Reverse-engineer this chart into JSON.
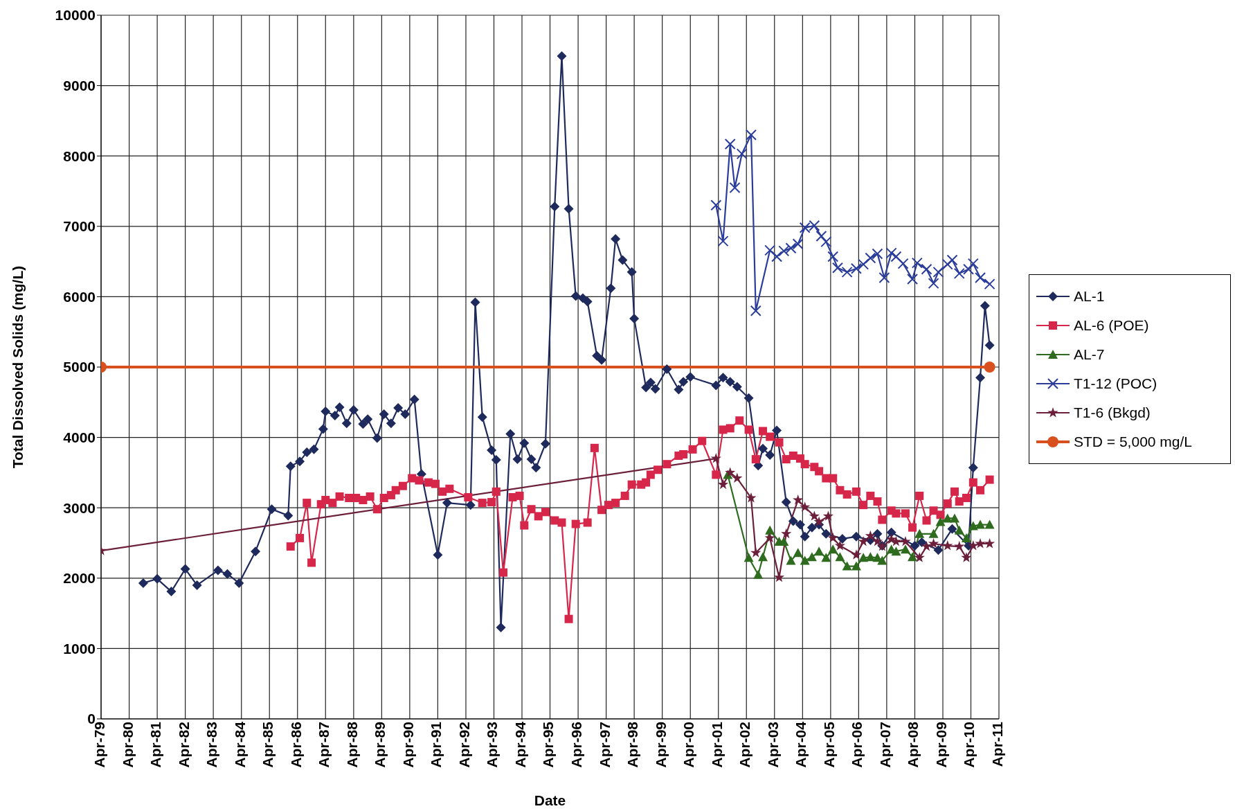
{
  "chart_data": {
    "type": "line",
    "xlabel": "Date",
    "ylabel": "Total Dissolved Solids (mg/L)",
    "xlim": [
      "1979-04",
      "2011-04"
    ],
    "xticks": [
      {
        "value": "1979-04",
        "label": "Apr-79"
      },
      {
        "value": "1980-04",
        "label": "Apr-80"
      },
      {
        "value": "1981-04",
        "label": "Apr-81"
      },
      {
        "value": "1982-04",
        "label": "Apr-82"
      },
      {
        "value": "1983-04",
        "label": "Apr-83"
      },
      {
        "value": "1984-04",
        "label": "Apr-84"
      },
      {
        "value": "1985-04",
        "label": "Apr-85"
      },
      {
        "value": "1986-04",
        "label": "Apr-86"
      },
      {
        "value": "1987-04",
        "label": "Apr-87"
      },
      {
        "value": "1988-04",
        "label": "Apr-88"
      },
      {
        "value": "1989-04",
        "label": "Apr-89"
      },
      {
        "value": "1990-04",
        "label": "Apr-90"
      },
      {
        "value": "1991-04",
        "label": "Apr-91"
      },
      {
        "value": "1992-04",
        "label": "Apr-92"
      },
      {
        "value": "1993-04",
        "label": "Apr-93"
      },
      {
        "value": "1994-04",
        "label": "Apr-94"
      },
      {
        "value": "1995-04",
        "label": "Apr-95"
      },
      {
        "value": "1996-04",
        "label": "Apr-96"
      },
      {
        "value": "1997-04",
        "label": "Apr-97"
      },
      {
        "value": "1998-04",
        "label": "Apr-98"
      },
      {
        "value": "1999-04",
        "label": "Apr-99"
      },
      {
        "value": "2000-04",
        "label": "Apr-00"
      },
      {
        "value": "2001-04",
        "label": "Apr-01"
      },
      {
        "value": "2002-04",
        "label": "Apr-02"
      },
      {
        "value": "2003-04",
        "label": "Apr-03"
      },
      {
        "value": "2004-04",
        "label": "Apr-04"
      },
      {
        "value": "2005-04",
        "label": "Apr-05"
      },
      {
        "value": "2006-04",
        "label": "Apr-06"
      },
      {
        "value": "2007-04",
        "label": "Apr-07"
      },
      {
        "value": "2008-04",
        "label": "Apr-08"
      },
      {
        "value": "2009-04",
        "label": "Apr-09"
      },
      {
        "value": "2010-04",
        "label": "Apr-10"
      },
      {
        "value": "2011-04",
        "label": "Apr-11"
      }
    ],
    "ylim": [
      0,
      10000
    ],
    "yticks": [
      0,
      1000,
      2000,
      3000,
      4000,
      5000,
      6000,
      7000,
      8000,
      9000,
      10000
    ],
    "grid": true,
    "legend": "right",
    "series": [
      {
        "name": "AL-1",
        "color": "#1f2a5c",
        "marker": "diamond",
        "x": [
          "1980-10",
          "1981-04",
          "1981-10",
          "1982-04",
          "1982-09",
          "1983-06",
          "1983-10",
          "1984-03",
          "1984-10",
          "1985-05",
          "1985-12",
          "1986-01",
          "1986-05",
          "1986-08",
          "1986-11",
          "1987-03",
          "1987-04",
          "1987-08",
          "1987-10",
          "1988-01",
          "1988-04",
          "1988-08",
          "1988-10",
          "1989-02",
          "1989-05",
          "1989-08",
          "1989-11",
          "1990-02",
          "1990-06",
          "1990-09",
          "1991-04",
          "1991-08",
          "1992-06",
          "1992-08",
          "1992-11",
          "1993-03",
          "1993-05",
          "1993-07",
          "1993-11",
          "1994-02",
          "1994-05",
          "1994-08",
          "1994-10",
          "1995-02",
          "1995-06",
          "1995-09",
          "1995-12",
          "1996-03",
          "1996-06",
          "1996-08",
          "1996-12",
          "1997-02",
          "1997-06",
          "1997-08",
          "1997-11",
          "1998-03",
          "1998-04",
          "1998-09",
          "1998-11",
          "1999-01",
          "1999-06",
          "1999-11",
          "2000-01",
          "2000-04",
          "2001-03",
          "2001-06",
          "2001-09",
          "2001-12",
          "2002-05",
          "2002-09",
          "2002-11",
          "2003-02",
          "2003-05",
          "2003-09",
          "2003-12",
          "2004-03",
          "2004-05",
          "2004-08",
          "2004-11",
          "2005-02",
          "2005-09",
          "2006-03",
          "2006-09",
          "2006-12",
          "2007-02",
          "2007-06",
          "2008-04",
          "2008-07",
          "2009-02",
          "2009-08",
          "2010-03",
          "2010-05",
          "2010-08",
          "2010-10",
          "2010-12"
        ],
        "values": [
          1930,
          1990,
          1810,
          2130,
          1900,
          2110,
          2060,
          1930,
          2380,
          2980,
          2890,
          3590,
          3660,
          3790,
          3830,
          4120,
          4370,
          4310,
          4430,
          4200,
          4390,
          4190,
          4260,
          3990,
          4330,
          4200,
          4420,
          4330,
          4540,
          3480,
          2330,
          3070,
          3040,
          5920,
          4290,
          3820,
          3680,
          1300,
          4050,
          3690,
          3920,
          3690,
          3570,
          3910,
          7280,
          9420,
          7250,
          6010,
          5980,
          5930,
          5160,
          5100,
          6120,
          6820,
          6520,
          6350,
          5690,
          4710,
          4780,
          4690,
          4970,
          4680,
          4790,
          4860,
          4740,
          4850,
          4790,
          4720,
          4560,
          3600,
          3840,
          3750,
          4100,
          3080,
          2810,
          2760,
          2590,
          2720,
          2760,
          2630,
          2560,
          2590,
          2540,
          2630,
          2460,
          2650,
          2460,
          2510,
          2400,
          2700,
          2460,
          3570,
          4850,
          5870,
          5310
        ]
      },
      {
        "name": "AL-6 (POE)",
        "color": "#d6264a",
        "marker": "square",
        "x": [
          "1986-01",
          "1986-05",
          "1986-08",
          "1986-10",
          "1987-02",
          "1987-04",
          "1987-07",
          "1987-10",
          "1988-02",
          "1988-05",
          "1988-08",
          "1988-11",
          "1989-02",
          "1989-05",
          "1989-08",
          "1989-10",
          "1990-01",
          "1990-05",
          "1990-08",
          "1990-12",
          "1991-03",
          "1991-06",
          "1991-09",
          "1992-05",
          "1992-11",
          "1993-03",
          "1993-05",
          "1993-08",
          "1993-12",
          "1994-03",
          "1994-05",
          "1994-08",
          "1994-11",
          "1995-02",
          "1995-06",
          "1995-09",
          "1995-12",
          "1996-03",
          "1996-08",
          "1996-11",
          "1997-02",
          "1997-05",
          "1997-08",
          "1997-12",
          "1998-03",
          "1998-07",
          "1998-09",
          "1998-11",
          "1999-02",
          "1999-06",
          "1999-11",
          "2000-01",
          "2000-05",
          "2000-09",
          "2001-03",
          "2001-06",
          "2001-09",
          "2002-01",
          "2002-05",
          "2002-08",
          "2002-11",
          "2003-02",
          "2003-06",
          "2003-09",
          "2003-12",
          "2004-03",
          "2004-05",
          "2004-09",
          "2004-11",
          "2005-02",
          "2005-05",
          "2005-08",
          "2005-11",
          "2006-03",
          "2006-06",
          "2006-09",
          "2006-12",
          "2007-02",
          "2007-06",
          "2007-08",
          "2007-12",
          "2008-03",
          "2008-06",
          "2008-09",
          "2008-12",
          "2009-03",
          "2009-06",
          "2009-09",
          "2009-11",
          "2010-02",
          "2010-05",
          "2010-08",
          "2010-12"
        ],
        "values": [
          2450,
          2570,
          3070,
          2220,
          3050,
          3110,
          3070,
          3160,
          3140,
          3140,
          3110,
          3160,
          2980,
          3140,
          3180,
          3250,
          3310,
          3420,
          3390,
          3360,
          3340,
          3230,
          3270,
          3150,
          3070,
          3080,
          3230,
          2080,
          3150,
          3170,
          2750,
          2980,
          2880,
          2940,
          2820,
          2790,
          1420,
          2770,
          2790,
          3850,
          2970,
          3040,
          3070,
          3170,
          3330,
          3330,
          3360,
          3470,
          3540,
          3620,
          3740,
          3760,
          3830,
          3950,
          3470,
          4110,
          4130,
          4240,
          4110,
          3690,
          4090,
          4010,
          3930,
          3690,
          3740,
          3700,
          3620,
          3580,
          3520,
          3420,
          3420,
          3250,
          3190,
          3230,
          3040,
          3170,
          3090,
          2830,
          2960,
          2920,
          2920,
          2720,
          3170,
          2820,
          2960,
          2900,
          3060,
          3230,
          3090,
          3140,
          3360,
          3250,
          3400
        ]
      },
      {
        "name": "AL-7",
        "color": "#2e6b1e",
        "marker": "triangle",
        "x": [
          "2001-08",
          "2002-05",
          "2002-09",
          "2002-11",
          "2003-02",
          "2003-06",
          "2003-08",
          "2003-11",
          "2004-02",
          "2004-05",
          "2004-08",
          "2004-11",
          "2005-02",
          "2005-05",
          "2005-08",
          "2005-11",
          "2006-03",
          "2006-06",
          "2006-09",
          "2006-12",
          "2007-02",
          "2007-06",
          "2007-08",
          "2007-12",
          "2008-03",
          "2008-06",
          "2008-09",
          "2008-12",
          "2009-03",
          "2009-06",
          "2009-09",
          "2009-11",
          "2010-02",
          "2010-05",
          "2010-08",
          "2010-12"
        ],
        "values": [
          3470,
          2290,
          2050,
          2300,
          2680,
          2520,
          2520,
          2250,
          2360,
          2250,
          2300,
          2380,
          2290,
          2410,
          2300,
          2170,
          2170,
          2290,
          2300,
          2290,
          2250,
          2410,
          2380,
          2410,
          2300,
          2630,
          null,
          2630,
          2800,
          2850,
          2850,
          2680,
          2570,
          2740,
          2760,
          2760
        ]
      },
      {
        "name": "T1-12 (POC)",
        "color": "#2b3d9a",
        "marker": "cross",
        "x": [
          "2001-03",
          "2001-06",
          "2001-09",
          "2001-11",
          "2002-02",
          "2002-06",
          "2002-08",
          "2003-02",
          "2003-05",
          "2003-08",
          "2003-11",
          "2004-02",
          "2004-05",
          "2004-09",
          "2004-12",
          "2005-02",
          "2005-05",
          "2005-07",
          "2005-11",
          "2006-03",
          "2006-06",
          "2006-09",
          "2006-12",
          "2007-03",
          "2007-06",
          "2007-08",
          "2007-11",
          "2008-03",
          "2008-05",
          "2008-09",
          "2008-12",
          "2009-02",
          "2009-06",
          "2009-08",
          "2009-11",
          "2010-03",
          "2010-05",
          "2010-08",
          "2010-12"
        ],
        "values": [
          7300,
          6790,
          8170,
          7550,
          8030,
          8300,
          5800,
          6660,
          6570,
          6650,
          6690,
          6750,
          6980,
          7010,
          6860,
          6780,
          6570,
          6410,
          6350,
          6400,
          6460,
          6550,
          6610,
          6270,
          6620,
          6570,
          6470,
          6250,
          6480,
          6390,
          6190,
          6350,
          6460,
          6520,
          6330,
          6390,
          6470,
          6270,
          6180
        ]
      },
      {
        "name": "T1-6 (Bkgd)",
        "color": "#6b1f3a",
        "marker": "star",
        "x": [
          "1979-04",
          "2001-03",
          "2001-06",
          "2001-09",
          "2001-12",
          "2002-06",
          "2002-08",
          "2003-02",
          "2003-06",
          "2003-09",
          "2004-02",
          "2004-05",
          "2004-09",
          "2004-11",
          "2005-03",
          "2005-05",
          "2005-08",
          "2006-03",
          "2006-06",
          "2006-09",
          "2006-12",
          "2007-02",
          "2007-06",
          "2007-08",
          "2007-12",
          "2008-06",
          "2008-09",
          "2008-12",
          "2009-06",
          "2009-11",
          "2010-02",
          "2010-05",
          "2010-08",
          "2010-12"
        ],
        "values": [
          2390,
          3700,
          3330,
          3500,
          3420,
          3140,
          2360,
          2570,
          2010,
          2630,
          3110,
          3010,
          2880,
          2800,
          2880,
          2570,
          2460,
          2330,
          2520,
          2600,
          2520,
          2450,
          2550,
          2520,
          2520,
          2290,
          2450,
          2490,
          2460,
          2450,
          2290,
          2460,
          2490,
          2490
        ]
      },
      {
        "name": "STD = 5,000 mg/L",
        "color": "#d8501e",
        "marker": "circle",
        "x": [
          "1979-04",
          "2010-12"
        ],
        "values": [
          5000,
          5000
        ]
      }
    ]
  }
}
